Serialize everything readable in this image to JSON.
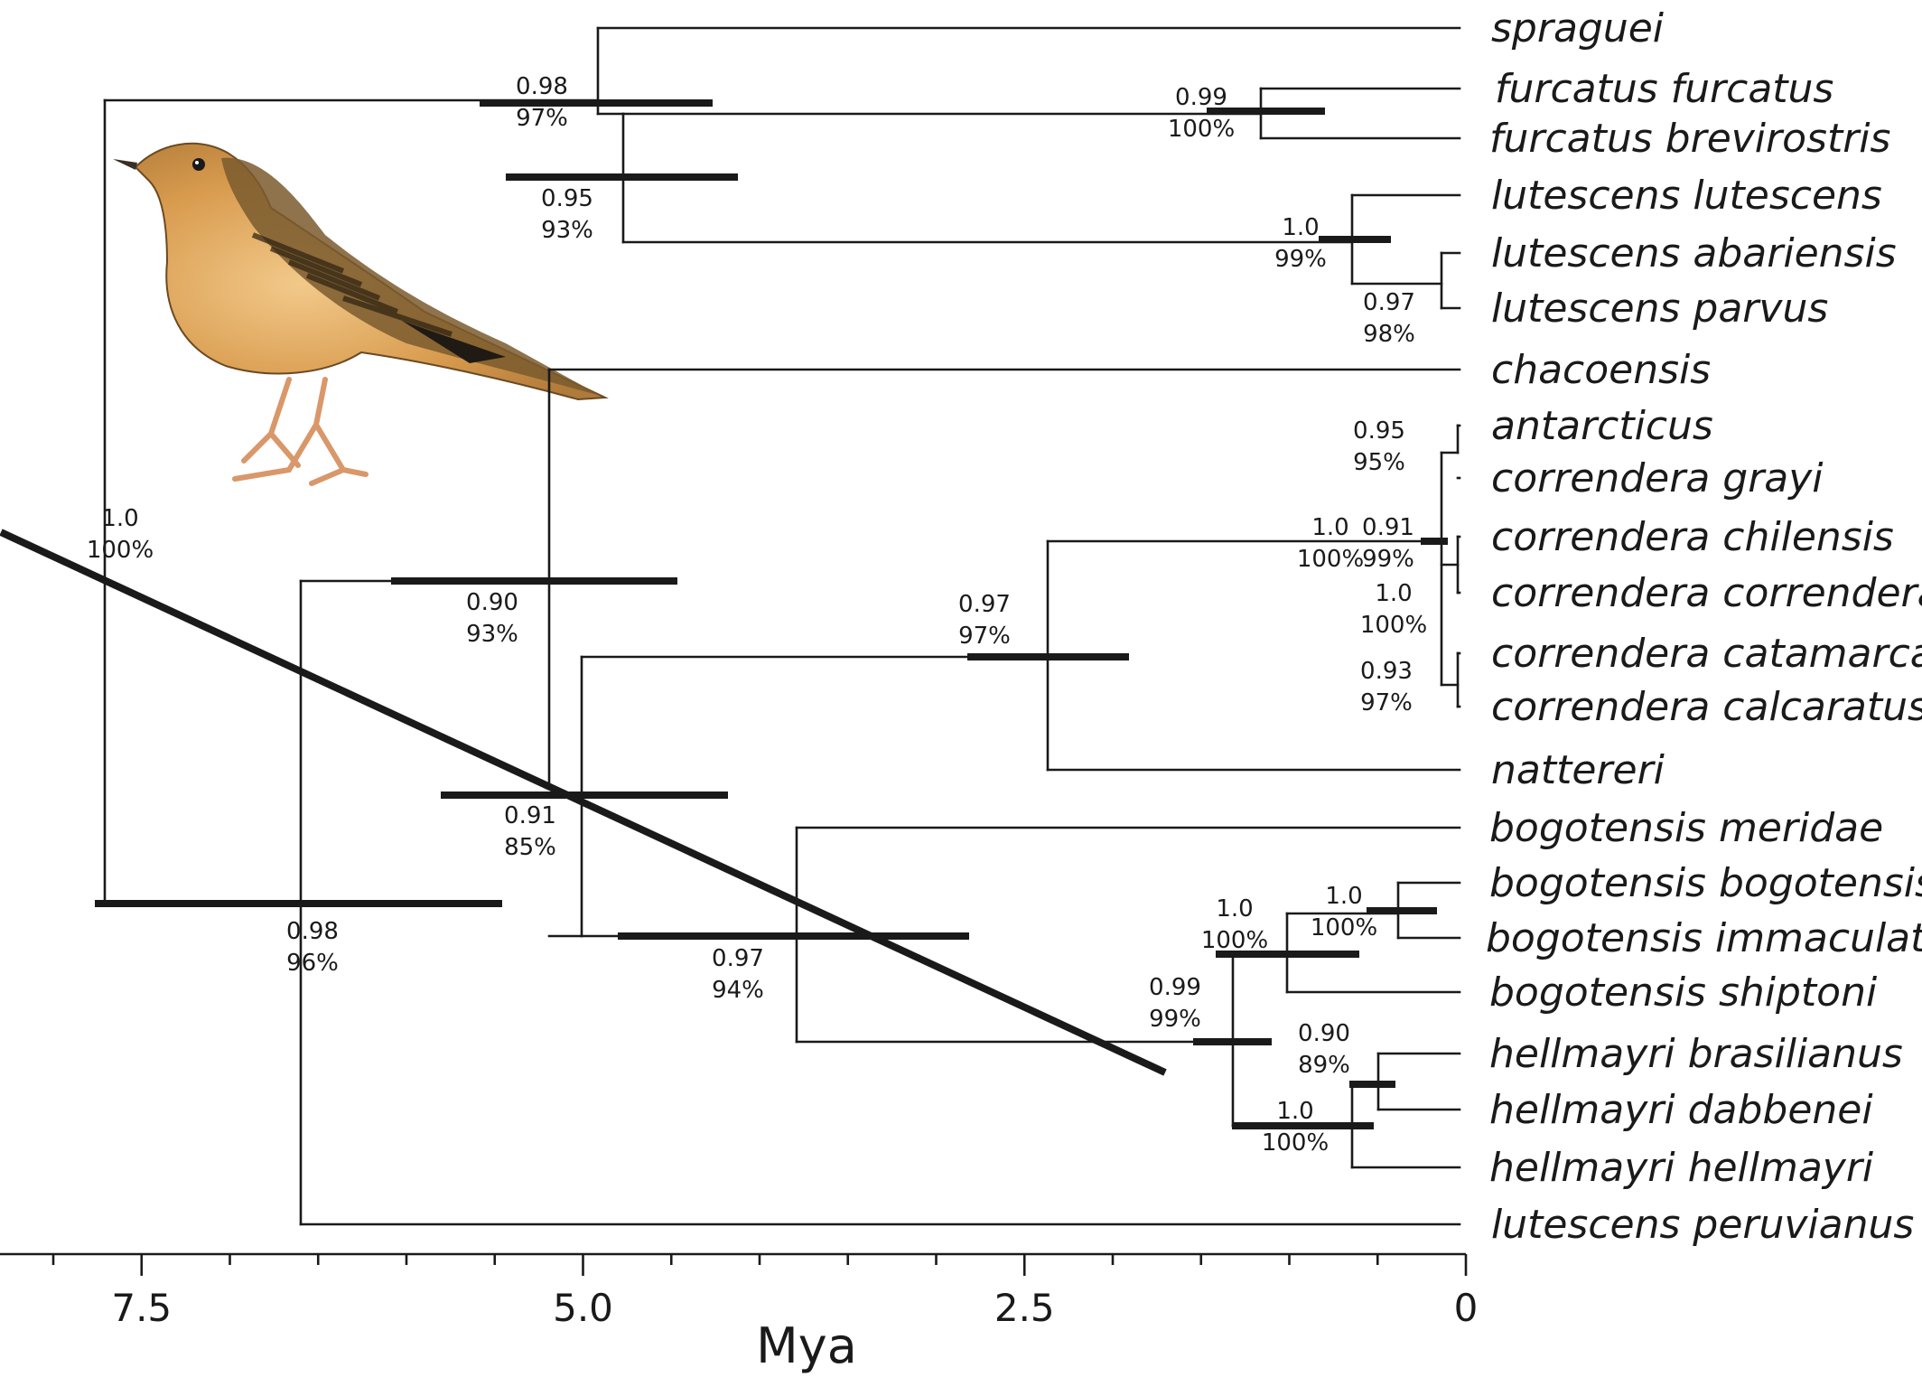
{
  "tips": [
    "spraguei",
    "furcatus furcatus",
    "furcatus brevirostris",
    "lutescens lutescens",
    "lutescens abariensis",
    "lutescens parvus",
    "chacoensis",
    "antarcticus",
    "correndera grayi",
    "correndera chilensis",
    "correndera correndera",
    "correndera catamarcae",
    "correndera calcaratus",
    "nattereri",
    "bogotensis meridae",
    "bogotensis bogotensis",
    "bogotensis immaculatus",
    "bogotensis shiptoni",
    "hellmayri brasilianus",
    "hellmayri dabbenei",
    "hellmayri hellmayri",
    "lutescens peruvianus"
  ],
  "node_supports": [
    {
      "pp": "1.0",
      "bs": "100%"
    },
    {
      "pp": "0.98",
      "bs": "97%"
    },
    {
      "pp": "0.95",
      "bs": "93%"
    },
    {
      "pp": "0.99",
      "bs": "100%"
    },
    {
      "pp": "1.0",
      "bs": "99%"
    },
    {
      "pp": "0.97",
      "bs": "98%"
    },
    {
      "pp": "0.98",
      "bs": "96%"
    },
    {
      "pp": "0.90",
      "bs": "93%"
    },
    {
      "pp": "0.91",
      "bs": "85%"
    },
    {
      "pp": "0.97",
      "bs": "97%"
    },
    {
      "pp": "1.0",
      "bs": "100%"
    },
    {
      "pp": "0.95",
      "bs": "95%"
    },
    {
      "pp": "0.91",
      "bs": "99%"
    },
    {
      "pp": "1.0",
      "bs": "100%"
    },
    {
      "pp": "0.93",
      "bs": "97%"
    },
    {
      "pp": "0.97",
      "bs": "94%"
    },
    {
      "pp": "0.99",
      "bs": "99%"
    },
    {
      "pp": "1.0",
      "bs": "100%"
    },
    {
      "pp": "1.0",
      "bs": "100%"
    },
    {
      "pp": "0.90",
      "bs": "89%"
    },
    {
      "pp": "1.0",
      "bs": "100%"
    }
  ],
  "axis": {
    "title": "Mya",
    "tick_labels": [
      "7.5",
      "5.0",
      "2.5",
      "0"
    ],
    "range_mya": [
      8.3,
      0
    ],
    "direction": "reversed"
  },
  "illustration": {
    "subject": "pipit-bird-illustration"
  },
  "colors": {
    "ink": "#1a1a1a"
  }
}
